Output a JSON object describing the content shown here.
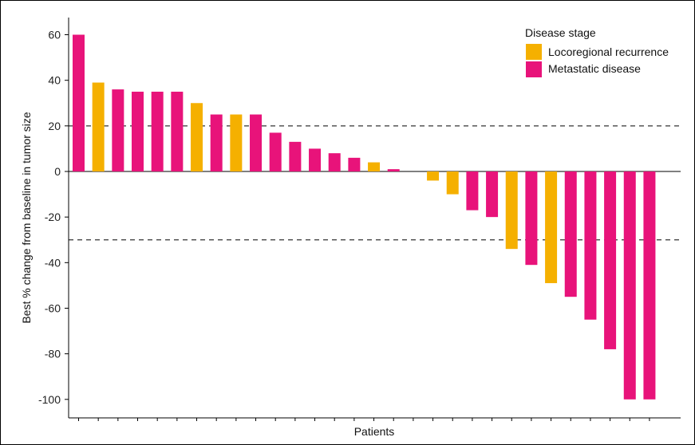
{
  "chart_data": {
    "type": "bar",
    "xlabel": "Patients",
    "ylabel": "Best % change from baseline in tumor size",
    "ylim": [
      -105,
      65
    ],
    "yticks": [
      60,
      40,
      20,
      0,
      -20,
      -40,
      -60,
      -80,
      -100
    ],
    "reference_lines": [
      20,
      -30
    ],
    "legend": {
      "title": "Disease stage",
      "placement": "top-right",
      "entries": [
        {
          "name": "Locoregional recurrence",
          "color": "#F5B000"
        },
        {
          "name": "Metastatic disease",
          "color": "#E8137A"
        }
      ]
    },
    "values": [
      60,
      39,
      36,
      35,
      35,
      35,
      30,
      25,
      25,
      25,
      17,
      13,
      10,
      8,
      6,
      4,
      1,
      0,
      -4,
      -10,
      -17,
      -20,
      -34,
      -41,
      -49,
      -55,
      -65,
      -78,
      -100,
      -100
    ],
    "groups": [
      "Metastatic disease",
      "Locoregional recurrence",
      "Metastatic disease",
      "Metastatic disease",
      "Metastatic disease",
      "Metastatic disease",
      "Locoregional recurrence",
      "Metastatic disease",
      "Locoregional recurrence",
      "Metastatic disease",
      "Metastatic disease",
      "Metastatic disease",
      "Metastatic disease",
      "Metastatic disease",
      "Metastatic disease",
      "Locoregional recurrence",
      "Metastatic disease",
      "Metastatic disease",
      "Locoregional recurrence",
      "Locoregional recurrence",
      "Metastatic disease",
      "Metastatic disease",
      "Locoregional recurrence",
      "Metastatic disease",
      "Locoregional recurrence",
      "Metastatic disease",
      "Metastatic disease",
      "Metastatic disease",
      "Metastatic disease",
      "Metastatic disease"
    ]
  }
}
